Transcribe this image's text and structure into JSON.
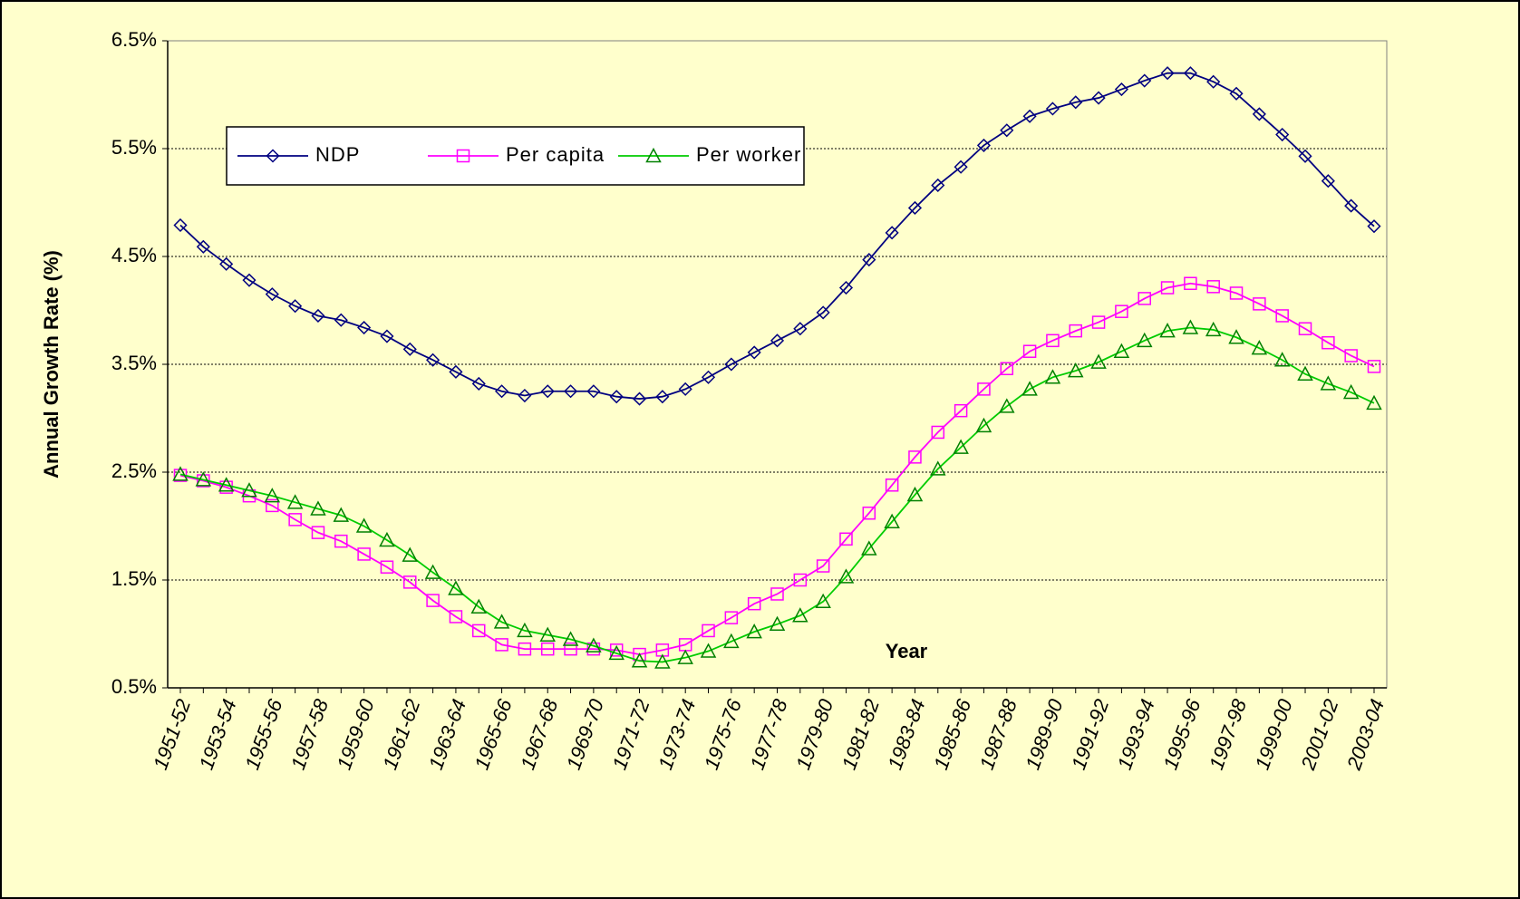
{
  "chart_data": {
    "type": "line",
    "x_label": "Year",
    "y_label": "Annual Growth Rate (%)",
    "categories": [
      "1951-52",
      null,
      "1953-54",
      null,
      "1955-56",
      null,
      "1957-58",
      null,
      "1959-60",
      null,
      "1961-62",
      null,
      "1963-64",
      null,
      "1965-66",
      null,
      "1967-68",
      null,
      "1969-70",
      null,
      "1971-72",
      null,
      "1973-74",
      null,
      "1975-76",
      null,
      "1977-78",
      null,
      "1979-80",
      null,
      "1981-82",
      null,
      "1983-84",
      null,
      "1985-86",
      null,
      "1987-88",
      null,
      "1989-90",
      null,
      "1991-92",
      null,
      "1993-94",
      null,
      "1995-96",
      null,
      "1997-98",
      null,
      "1999-00",
      null,
      "2001-02",
      null,
      "2003-04"
    ],
    "series": [
      {
        "name": "NDP",
        "color": "#000080",
        "marker": "diamond",
        "values": [
          4.79,
          4.59,
          4.43,
          4.28,
          4.15,
          4.04,
          3.95,
          3.91,
          3.84,
          3.76,
          3.64,
          3.54,
          3.43,
          3.32,
          3.25,
          3.21,
          3.25,
          3.25,
          3.25,
          3.2,
          3.18,
          3.2,
          3.27,
          3.38,
          3.5,
          3.61,
          3.72,
          3.83,
          3.98,
          4.21,
          4.47,
          4.72,
          4.95,
          5.16,
          5.33,
          5.53,
          5.67,
          5.8,
          5.87,
          5.93,
          5.97,
          6.05,
          6.13,
          6.2,
          6.2,
          6.12,
          6.01,
          5.82,
          5.63,
          5.43,
          5.2,
          4.97,
          4.78
        ]
      },
      {
        "name": "Per capita",
        "color": "#FF00FF",
        "marker": "square",
        "values": [
          2.47,
          2.42,
          2.36,
          2.28,
          2.19,
          2.06,
          1.94,
          1.86,
          1.74,
          1.62,
          1.48,
          1.31,
          1.16,
          1.03,
          0.9,
          0.86,
          0.86,
          0.86,
          0.86,
          0.85,
          0.81,
          0.85,
          0.9,
          1.03,
          1.15,
          1.28,
          1.37,
          1.5,
          1.63,
          1.88,
          2.12,
          2.38,
          2.64,
          2.87,
          3.07,
          3.27,
          3.46,
          3.62,
          3.72,
          3.81,
          3.89,
          3.99,
          4.11,
          4.21,
          4.25,
          4.22,
          4.16,
          4.06,
          3.95,
          3.83,
          3.7,
          3.58,
          3.48
        ]
      },
      {
        "name": "Per worker",
        "color": "#00CC00",
        "marker": "triangle",
        "values": [
          2.48,
          2.43,
          2.38,
          2.33,
          2.28,
          2.22,
          2.16,
          2.1,
          2.0,
          1.87,
          1.73,
          1.57,
          1.42,
          1.25,
          1.11,
          1.03,
          0.99,
          0.95,
          0.89,
          0.82,
          0.75,
          0.74,
          0.78,
          0.84,
          0.93,
          1.02,
          1.09,
          1.17,
          1.3,
          1.53,
          1.79,
          2.04,
          2.29,
          2.53,
          2.73,
          2.93,
          3.11,
          3.27,
          3.38,
          3.44,
          3.52,
          3.62,
          3.72,
          3.81,
          3.84,
          3.82,
          3.75,
          3.65,
          3.54,
          3.41,
          3.32,
          3.24,
          3.14
        ]
      }
    ],
    "ylim": [
      0.5,
      6.5
    ],
    "yticks": [
      {
        "value": 0.5,
        "label": "0.5%"
      },
      {
        "value": 1.5,
        "label": "1.5%"
      },
      {
        "value": 2.5,
        "label": "2.5%"
      },
      {
        "value": 3.5,
        "label": "3.5%"
      },
      {
        "value": 4.5,
        "label": "4.5%"
      },
      {
        "value": 5.5,
        "label": "5.5%"
      },
      {
        "value": 6.5,
        "label": "6.5%"
      }
    ],
    "grid": true,
    "legend": "upper left"
  }
}
